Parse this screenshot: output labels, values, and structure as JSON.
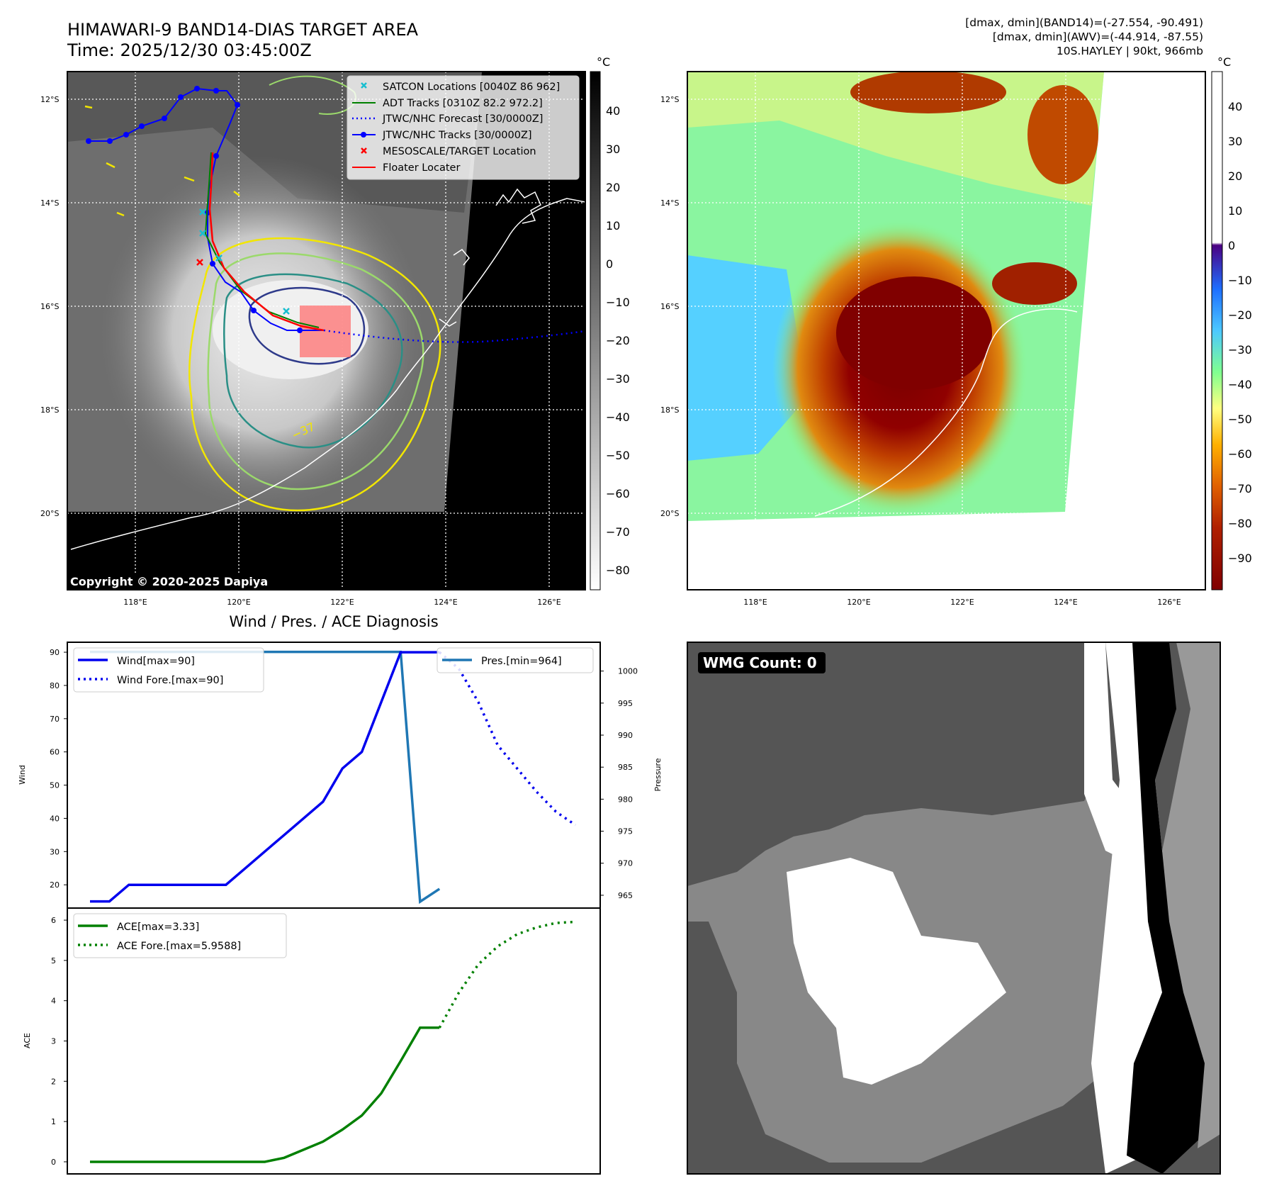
{
  "top_left": {
    "title_line1": "HIMAWARI-9 BAND14-DIAS TARGET AREA",
    "title_line2": "Time: 2025/12/30 03:45:00Z",
    "lat_ticks": [
      "12°S",
      "14°S",
      "16°S",
      "18°S",
      "20°S"
    ],
    "lon_ticks": [
      "118°E",
      "120°E",
      "122°E",
      "124°E",
      "126°E"
    ],
    "colorbar_unit": "°C",
    "colorbar_ticks": [
      "40",
      "30",
      "20",
      "10",
      "0",
      "−10",
      "−20",
      "−30",
      "−40",
      "−50",
      "−60",
      "−70",
      "−80"
    ],
    "copyright": "Copyright © 2020-2025 Dapiya",
    "contour_label": "−37",
    "legend": [
      "SATCON Locations [0040Z 86 962]",
      "ADT Tracks [0310Z 82.2 972.2]",
      "JTWC/NHC Forecast [30/0000Z]",
      "JTWC/NHC Tracks [30/0000Z]",
      "MESOSCALE/TARGET Location",
      "Floater Locater"
    ]
  },
  "top_right": {
    "info_line1": "[dmax, dmin](BAND14)=(-27.554, -90.491)",
    "info_line2": "[dmax, dmin](AWV)=(-44.914, -87.55)",
    "info_line3": "10S.HAYLEY | 90kt, 966mb",
    "lat_ticks": [
      "12°S",
      "14°S",
      "16°S",
      "18°S",
      "20°S"
    ],
    "lon_ticks": [
      "118°E",
      "120°E",
      "122°E",
      "124°E",
      "126°E"
    ],
    "colorbar_unit": "°C",
    "colorbar_ticks": [
      "40",
      "30",
      "20",
      "10",
      "0",
      "−10",
      "−20",
      "−30",
      "−40",
      "−50",
      "−60",
      "−70",
      "−80",
      "−90"
    ]
  },
  "bottom_left": {
    "title": "Wind / Pres. / ACE Diagnosis"
  },
  "bottom_right": {
    "badge": "WMG Count: 0"
  },
  "colors": {
    "wind": "#0000ee",
    "pressure": "#1f77b4",
    "ace": "#008000",
    "jtwc_track": "#0000ff",
    "floater": "#ff0000",
    "adt": "#008000",
    "satcon": "#17becf",
    "target_box": "#ff6666"
  },
  "chart_data": [
    {
      "type": "line",
      "title": "Wind / Pres. / ACE Diagnosis",
      "ylabel": "Wind",
      "ylabel_right": "Pressure",
      "ylim": [
        13,
        93
      ],
      "ylim_right": [
        963,
        1004.5
      ],
      "y_ticks": [
        20,
        30,
        40,
        50,
        60,
        70,
        80,
        90
      ],
      "y_ticks_right": [
        965,
        970,
        975,
        980,
        985,
        990,
        995,
        1000
      ],
      "x": [
        0,
        1,
        2,
        3,
        4,
        5,
        6,
        7,
        8,
        9,
        10,
        11,
        12,
        13,
        14,
        15,
        16,
        17,
        18,
        19,
        20,
        21,
        22,
        23,
        24,
        25
      ],
      "series": [
        {
          "name": "Wind[max=90]",
          "style": "solid",
          "axis": "left",
          "x": [
            0,
            1,
            2,
            3,
            4,
            5,
            6,
            7,
            8,
            9,
            10,
            11,
            12,
            13,
            14,
            15,
            16,
            17,
            18
          ],
          "values": [
            15,
            15,
            20,
            20,
            20,
            20,
            20,
            20,
            25,
            30,
            35,
            40,
            45,
            55,
            60,
            75,
            90,
            90,
            90
          ]
        },
        {
          "name": "Wind Fore.[max=90]",
          "style": "dotted",
          "axis": "left",
          "x": [
            18,
            19,
            20,
            21,
            22,
            23,
            24,
            25
          ],
          "values": [
            90,
            85,
            75,
            62,
            55,
            48,
            42,
            38
          ]
        },
        {
          "name": "Pres.[min=964]",
          "style": "solid",
          "axis": "right",
          "x": [
            0,
            1,
            2,
            3,
            4,
            5,
            6,
            7,
            8,
            9,
            10,
            11,
            12,
            13,
            14,
            15,
            16,
            17,
            18
          ],
          "values": [
            1003,
            1003,
            1003,
            1003,
            1003,
            1003,
            1003,
            1003,
            1003,
            1003,
            1003,
            1003,
            1003,
            1003,
            1003,
            1003,
            1003,
            964,
            966
          ]
        }
      ]
    },
    {
      "type": "line",
      "ylabel": "ACE",
      "ylim": [
        -0.3,
        6.3
      ],
      "y_ticks": [
        0,
        1,
        2,
        3,
        4,
        5,
        6
      ],
      "series": [
        {
          "name": "ACE[max=3.33]",
          "style": "solid",
          "x": [
            0,
            1,
            2,
            3,
            4,
            5,
            6,
            7,
            8,
            9,
            10,
            11,
            12,
            13,
            14,
            15,
            16,
            17,
            18
          ],
          "values": [
            0,
            0,
            0,
            0,
            0,
            0,
            0,
            0,
            0,
            0,
            0.1,
            0.3,
            0.5,
            0.8,
            1.15,
            1.7,
            2.5,
            3.33,
            3.33
          ]
        },
        {
          "name": "ACE Fore.[max=5.9588]",
          "style": "dotted",
          "x": [
            18,
            19,
            20,
            21,
            22,
            23,
            24,
            25
          ],
          "values": [
            3.33,
            4.2,
            4.9,
            5.35,
            5.65,
            5.82,
            5.93,
            5.9588
          ]
        }
      ]
    }
  ]
}
